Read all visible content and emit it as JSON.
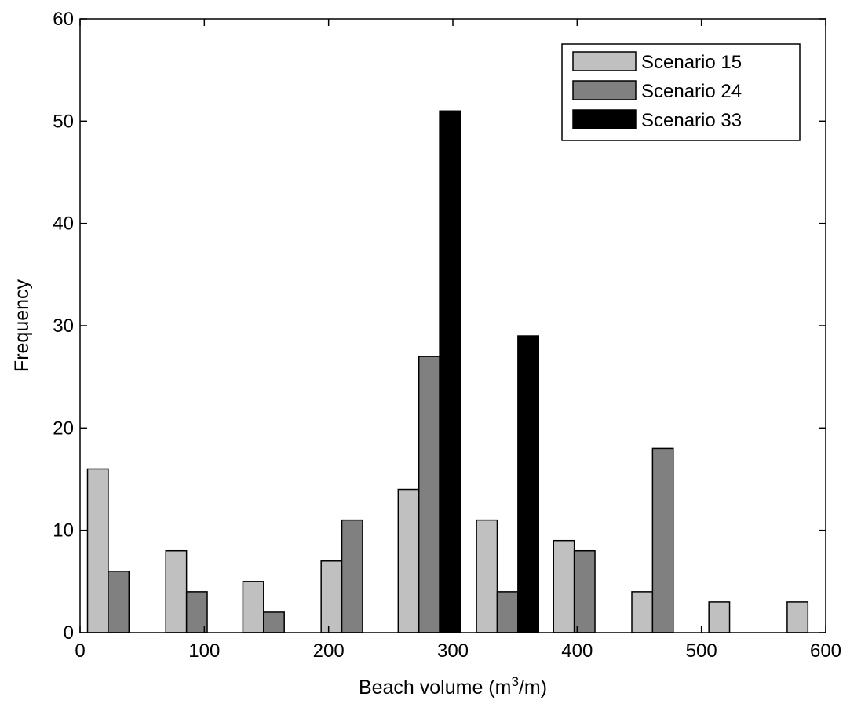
{
  "chart_data": {
    "type": "bar",
    "xlabel": {
      "prefix": "Beach volume (m",
      "sup": "3",
      "suffix": "/m)"
    },
    "ylabel": "Frequency",
    "xlim": [
      0,
      600
    ],
    "ylim": [
      0,
      60
    ],
    "xticks": [
      "0",
      "100",
      "200",
      "300",
      "400",
      "500",
      "600"
    ],
    "yticks": [
      "0",
      "10",
      "20",
      "30",
      "40",
      "50",
      "60"
    ],
    "grid": false,
    "legend_position": "top-right",
    "bin_centers": [
      31,
      94,
      156,
      219,
      281,
      344,
      406,
      469,
      531,
      594
    ],
    "series": [
      {
        "name": "Scenario 15",
        "color": "#c0c0c0",
        "values": [
          16,
          8,
          5,
          7,
          14,
          11,
          9,
          4,
          3,
          3
        ]
      },
      {
        "name": "Scenario 24",
        "color": "#808080",
        "values": [
          6,
          4,
          2,
          11,
          27,
          4,
          8,
          18,
          0,
          0
        ]
      },
      {
        "name": "Scenario 33",
        "color": "#000000",
        "values": [
          0,
          0,
          0,
          0,
          51,
          29,
          0,
          0,
          0,
          0
        ]
      }
    ]
  }
}
